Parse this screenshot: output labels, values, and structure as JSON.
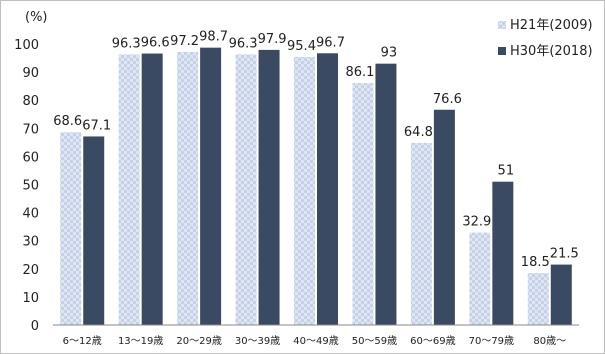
{
  "chart_data": {
    "type": "bar",
    "ylabel": "(%)",
    "ylim": [
      0,
      100
    ],
    "yticks": [
      0,
      10,
      20,
      30,
      40,
      50,
      60,
      70,
      80,
      90,
      100
    ],
    "grid": false,
    "legend_position": "top-right",
    "categories": [
      "6～12歳",
      "13～19歳",
      "20～29歳",
      "30～39歳",
      "40～49歳",
      "50～59歳",
      "60～69歳",
      "70～79歳",
      "80歳～"
    ],
    "series": [
      {
        "name": "H21年(2009)",
        "color": "#d7dff0",
        "values": [
          68.6,
          96.3,
          97.2,
          96.3,
          95.4,
          86.1,
          64.8,
          32.9,
          18.5
        ]
      },
      {
        "name": "H30年(2018)",
        "color": "#3b4a63",
        "values": [
          67.1,
          96.6,
          98.7,
          97.9,
          96.7,
          93.0,
          76.6,
          51.0,
          21.5
        ]
      }
    ]
  }
}
